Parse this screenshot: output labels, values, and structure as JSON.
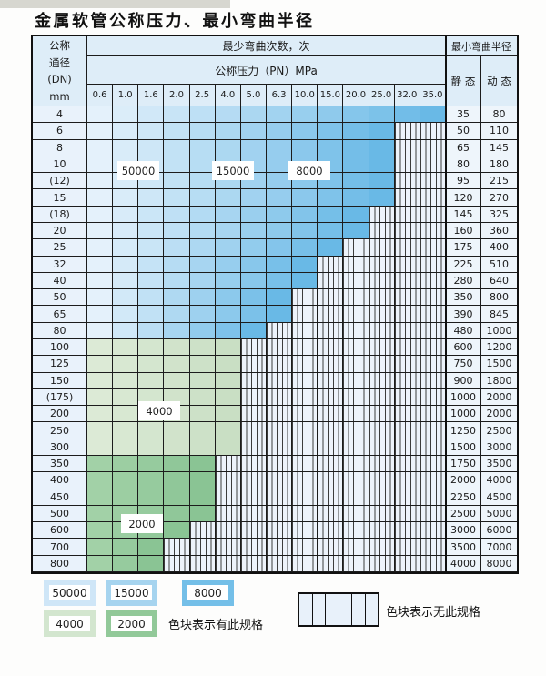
{
  "page": {
    "title": "金属软管公称压力、最小弯曲半径"
  },
  "table": {
    "corner_lines": [
      "公称",
      "通径",
      "(DN)",
      "mm"
    ],
    "bend_header": "最少弯曲次数，次",
    "pressure_header": "公称压力（PN）MPa",
    "radius_header": "最小弯曲半径",
    "static_header": "静 态",
    "dynamic_header": "动 态",
    "pressure_columns": [
      "0.6",
      "1.0",
      "1.6",
      "2.0",
      "2.5",
      "4.0",
      "5.0",
      "6.3",
      "10.0",
      "15.0",
      "20.0",
      "25.0",
      "32.0",
      "35.0"
    ],
    "rows": [
      {
        "dn": "4",
        "static": "35",
        "dynamic": "80",
        "colored": 14,
        "zone": "blue"
      },
      {
        "dn": "6",
        "static": "50",
        "dynamic": "110",
        "colored": 12,
        "zone": "blue"
      },
      {
        "dn": "8",
        "static": "65",
        "dynamic": "145",
        "colored": 12,
        "zone": "blue"
      },
      {
        "dn": "10",
        "static": "80",
        "dynamic": "180",
        "colored": 12,
        "zone": "blue"
      },
      {
        "dn": "(12)",
        "static": "95",
        "dynamic": "215",
        "colored": 12,
        "zone": "blue"
      },
      {
        "dn": "15",
        "static": "120",
        "dynamic": "270",
        "colored": 12,
        "zone": "blue"
      },
      {
        "dn": "(18)",
        "static": "145",
        "dynamic": "325",
        "colored": 11,
        "zone": "blue"
      },
      {
        "dn": "20",
        "static": "160",
        "dynamic": "360",
        "colored": 11,
        "zone": "blue"
      },
      {
        "dn": "25",
        "static": "175",
        "dynamic": "400",
        "colored": 10,
        "zone": "blue"
      },
      {
        "dn": "32",
        "static": "225",
        "dynamic": "510",
        "colored": 9,
        "zone": "blue"
      },
      {
        "dn": "40",
        "static": "280",
        "dynamic": "640",
        "colored": 9,
        "zone": "blue"
      },
      {
        "dn": "50",
        "static": "350",
        "dynamic": "800",
        "colored": 8,
        "zone": "blue"
      },
      {
        "dn": "65",
        "static": "390",
        "dynamic": "845",
        "colored": 8,
        "zone": "blue"
      },
      {
        "dn": "80",
        "static": "480",
        "dynamic": "1000",
        "colored": 7,
        "zone": "blue"
      },
      {
        "dn": "100",
        "static": "600",
        "dynamic": "1200",
        "colored": 6,
        "zone": "green_4000"
      },
      {
        "dn": "125",
        "static": "750",
        "dynamic": "1500",
        "colored": 6,
        "zone": "green_4000"
      },
      {
        "dn": "150",
        "static": "900",
        "dynamic": "1800",
        "colored": 6,
        "zone": "green_4000"
      },
      {
        "dn": "(175)",
        "static": "1000",
        "dynamic": "2000",
        "colored": 6,
        "zone": "green_4000"
      },
      {
        "dn": "200",
        "static": "1000",
        "dynamic": "2000",
        "colored": 6,
        "zone": "green_4000"
      },
      {
        "dn": "250",
        "static": "1250",
        "dynamic": "2500",
        "colored": 6,
        "zone": "green_4000"
      },
      {
        "dn": "300",
        "static": "1500",
        "dynamic": "3000",
        "colored": 6,
        "zone": "green_4000"
      },
      {
        "dn": "350",
        "static": "1750",
        "dynamic": "3500",
        "colored": 5,
        "zone": "green_2000"
      },
      {
        "dn": "400",
        "static": "2000",
        "dynamic": "4000",
        "colored": 5,
        "zone": "green_2000"
      },
      {
        "dn": "450",
        "static": "2250",
        "dynamic": "4500",
        "colored": 5,
        "zone": "green_2000"
      },
      {
        "dn": "500",
        "static": "2500",
        "dynamic": "5000",
        "colored": 5,
        "zone": "green_2000"
      },
      {
        "dn": "600",
        "static": "3000",
        "dynamic": "6000",
        "colored": 4,
        "zone": "green_2000"
      },
      {
        "dn": "700",
        "static": "3500",
        "dynamic": "7000",
        "colored": 3,
        "zone": "green_2000"
      },
      {
        "dn": "800",
        "static": "4000",
        "dynamic": "8000",
        "colored": 3,
        "zone": "green_2000"
      }
    ],
    "zone_overlays": [
      {
        "text": "50000"
      },
      {
        "text": "15000"
      },
      {
        "text": "8000"
      },
      {
        "text": "4000"
      },
      {
        "text": "2000"
      }
    ]
  },
  "legend": {
    "items": [
      {
        "label": "50000",
        "color": "#cfe6f7"
      },
      {
        "label": "15000",
        "color": "#a6d4ef"
      },
      {
        "label": "8000",
        "color": "#74bfe8"
      },
      {
        "label": "4000",
        "color": "#d3e6cf"
      },
      {
        "label": "2000",
        "color": "#92c999"
      }
    ],
    "has_spec_note": "色块表示有此规格",
    "no_spec_note": "色块表示无此规格"
  },
  "colors": {
    "blue_light": "#e4f1fb",
    "blue_dark": "#69b9e6",
    "green4000_light": "#dcead6",
    "green4000_dark": "#c9dfc4",
    "green2000_light": "#a2d1a7",
    "green2000_dark": "#8ac494",
    "header_bg": "#deedf8",
    "label_bg": "#e9f2fb",
    "value_bg": "#eef5fb",
    "hatch_bg": "#edf3fb",
    "hatch_line": "#3c3c3c",
    "grid_line": "#1c1c1c"
  }
}
